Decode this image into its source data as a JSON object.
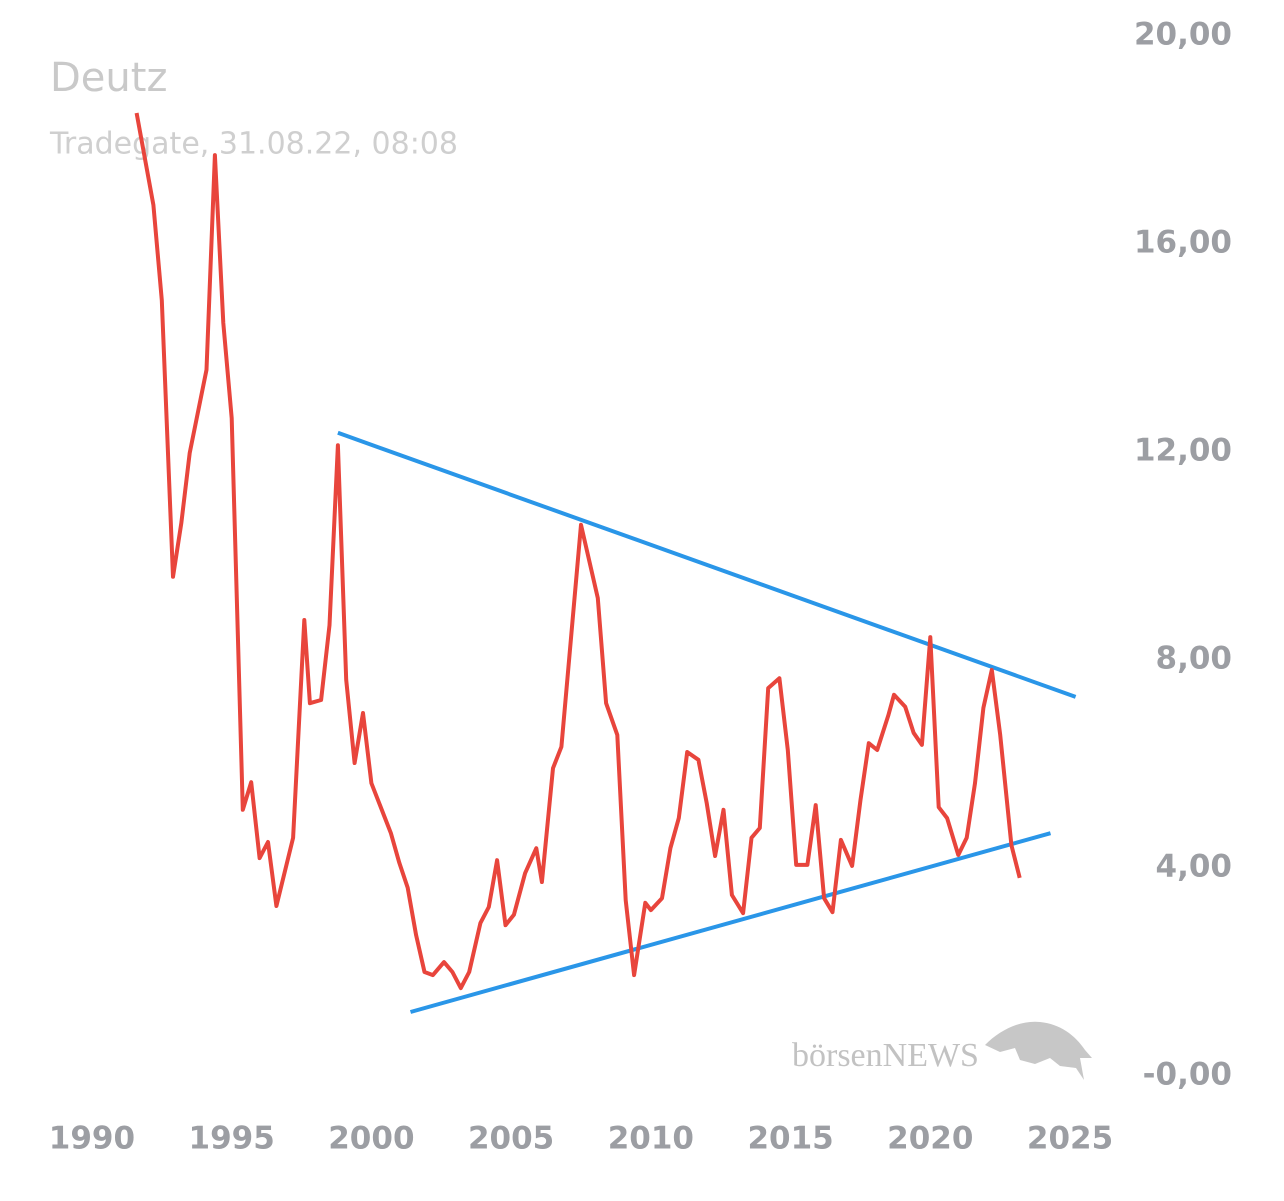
{
  "chart_data": {
    "type": "line",
    "title": "Deutz",
    "subtitle": "Tradegate, 31.08.22, 08:08",
    "watermark": "börsenNEWS",
    "xlim": [
      1988.5,
      2026
    ],
    "ylim": [
      -0.5,
      20.5
    ],
    "xticks": [
      1990,
      1995,
      2000,
      2005,
      2010,
      2015,
      2020,
      2025
    ],
    "yticks": [
      {
        "value": 0,
        "label": "-0,00"
      },
      {
        "value": 4,
        "label": "4,00"
      },
      {
        "value": 8,
        "label": "8,00"
      },
      {
        "value": 12,
        "label": "12,00"
      },
      {
        "value": 16,
        "label": "16,00"
      },
      {
        "value": 20,
        "label": "20,00"
      }
    ],
    "grid": false,
    "series": [
      {
        "color": "#e8453c",
        "x": [
          1991.6,
          1992.2,
          1992.5,
          1992.9,
          1993.2,
          1993.5,
          1994.1,
          1994.4,
          1994.7,
          1995.0,
          1995.4,
          1995.7,
          1996.0,
          1996.3,
          1996.6,
          1997.2,
          1997.6,
          1997.8,
          1998.2,
          1998.5,
          1998.8,
          1999.1,
          1999.4,
          1999.7,
          2000.0,
          2000.7,
          2001.0,
          2001.3,
          2001.6,
          2001.9,
          2002.2,
          2002.6,
          2002.9,
          2003.2,
          2003.5,
          2003.9,
          2004.2,
          2004.5,
          2004.8,
          2005.1,
          2005.5,
          2005.9,
          2006.1,
          2006.5,
          2006.8,
          2007.5,
          2008.1,
          2008.4,
          2008.8,
          2009.1,
          2009.4,
          2009.8,
          2010.0,
          2010.4,
          2010.7,
          2011.0,
          2011.3,
          2011.7,
          2012.0,
          2012.3,
          2012.6,
          2012.9,
          2013.3,
          2013.6,
          2013.9,
          2014.2,
          2014.6,
          2014.9,
          2015.2,
          2015.6,
          2015.9,
          2016.2,
          2016.5,
          2016.8,
          2017.2,
          2017.5,
          2017.8,
          2018.1,
          2018.5,
          2018.7,
          2019.1,
          2019.4,
          2019.7,
          2020.0,
          2020.3,
          2020.6,
          2021.0,
          2021.3,
          2021.6,
          2021.9,
          2022.2,
          2022.5,
          2022.9,
          2023.2
        ],
        "values": [
          18.52,
          16.75,
          14.92,
          9.6,
          10.63,
          11.98,
          13.58,
          17.71,
          14.48,
          12.65,
          5.12,
          5.65,
          4.19,
          4.5,
          3.27,
          4.58,
          8.77,
          7.17,
          7.23,
          8.67,
          12.13,
          7.62,
          6.02,
          6.98,
          5.63,
          4.67,
          4.1,
          3.62,
          2.71,
          2.0,
          1.94,
          2.19,
          2.0,
          1.69,
          2.0,
          2.94,
          3.25,
          4.15,
          2.9,
          3.1,
          3.9,
          4.38,
          3.73,
          5.92,
          6.33,
          10.6,
          9.19,
          7.17,
          6.56,
          3.38,
          1.94,
          3.33,
          3.19,
          3.42,
          4.38,
          4.96,
          6.23,
          6.08,
          5.25,
          4.23,
          5.12,
          3.48,
          3.13,
          4.58,
          4.77,
          7.46,
          7.65,
          6.27,
          4.06,
          4.06,
          5.21,
          3.42,
          3.15,
          4.54,
          4.04,
          5.31,
          6.4,
          6.27,
          6.94,
          7.33,
          7.1,
          6.6,
          6.37,
          8.44,
          5.17,
          4.96,
          4.25,
          4.58,
          5.63,
          7.08,
          7.81,
          6.56,
          4.44,
          3.81
        ]
      },
      {
        "color": "#2a96e8",
        "x": [
          1998.8,
          2025.2
        ],
        "values": [
          12.37,
          7.29
        ]
      },
      {
        "color": "#2a96e8",
        "x": [
          2001.4,
          2024.3
        ],
        "values": [
          1.23,
          4.67
        ]
      }
    ]
  }
}
